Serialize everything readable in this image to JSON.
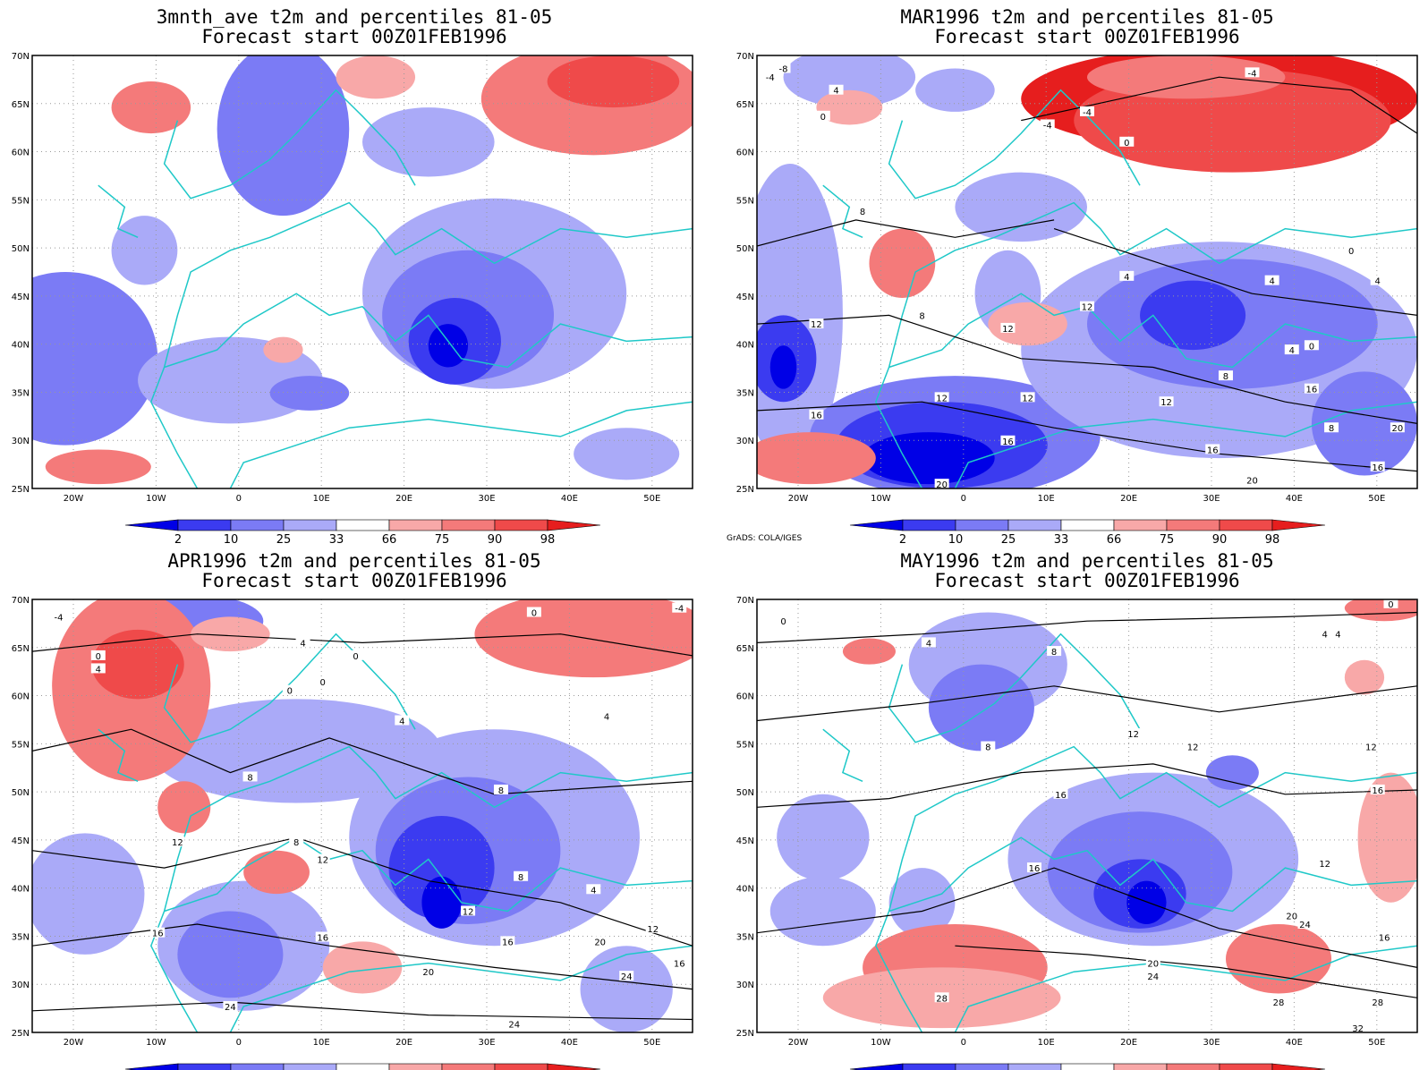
{
  "figure": {
    "credit": "GrADS: COLA/IGES",
    "colorbar": {
      "levels": [
        "2",
        "10",
        "25",
        "33",
        "66",
        "75",
        "90",
        "98"
      ],
      "colors": [
        "#0000e6",
        "#3b3bf0",
        "#7b7bf5",
        "#aaaaf8",
        "#ffffff",
        "#f8a8a8",
        "#f47a7a",
        "#ef4a4a",
        "#e61e1e"
      ]
    },
    "map_axes": {
      "lat_labels": [
        "70N",
        "65N",
        "60N",
        "55N",
        "50N",
        "45N",
        "40N",
        "35N",
        "30N",
        "25N"
      ],
      "lon_labels": [
        "20W",
        "10W",
        "0",
        "10E",
        "20E",
        "30E",
        "40E",
        "50E"
      ]
    },
    "panels": [
      {
        "title1": "3mnth_ave t2m and percentiles 81-05",
        "title2": "Forecast start 00Z01FEB1996",
        "show_credit": false,
        "contour_labels": []
      },
      {
        "title1": "MAR1996 t2m and percentiles 81-05",
        "title2": "Forecast start 00Z01FEB1996",
        "show_credit": true,
        "contour_labels": [
          "-8",
          "-4",
          "0",
          "4",
          "-4",
          "-4",
          "-4",
          "0",
          "8",
          "0",
          "4",
          "4",
          "4",
          "8",
          "12",
          "12",
          "12",
          "4",
          "0",
          "8",
          "12",
          "12",
          "12",
          "16",
          "16",
          "16",
          "16",
          "8",
          "20",
          "20",
          "20",
          "16"
        ]
      },
      {
        "title1": "APR1996 t2m and percentiles 81-05",
        "title2": "Forecast start 00Z01FEB1996",
        "show_credit": true,
        "contour_labels": [
          "-4",
          "0",
          "4",
          "4",
          "0",
          "0",
          "0",
          "4",
          "4",
          "8",
          "8",
          "12",
          "12",
          "8",
          "8",
          "12",
          "16",
          "16",
          "16",
          "20",
          "20",
          "24",
          "24",
          "12",
          "16",
          "4",
          "24",
          "0",
          "-4"
        ]
      },
      {
        "title1": "MAY1996 t2m and percentiles 81-05",
        "title2": "Forecast start 00Z01FEB1996",
        "show_credit": true,
        "contour_labels": [
          "0",
          "4",
          "4",
          "8",
          "8",
          "12",
          "12",
          "12",
          "16",
          "16",
          "16",
          "12",
          "20",
          "24",
          "16",
          "20",
          "24",
          "28",
          "28",
          "28",
          "32",
          "0",
          "4"
        ]
      }
    ]
  }
}
